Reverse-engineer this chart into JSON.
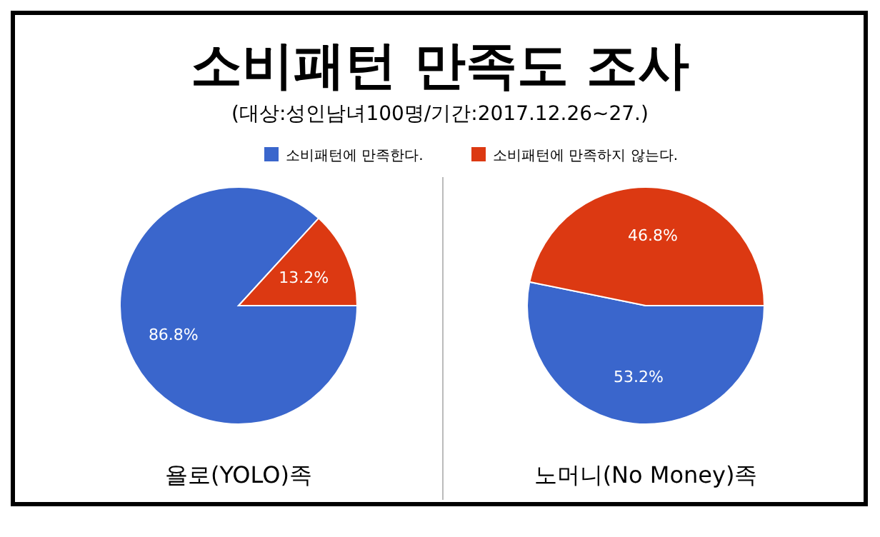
{
  "chart_data": [
    {
      "type": "pie",
      "title": "소비패턴 만족도 조사",
      "subtitle": "(대상:성인남녀100명/기간:2017.12.26~27.)",
      "xlabel": "욜로(YOLO)족",
      "categories": [
        "소비패턴에 만족한다.",
        "소비패턴에 만족하지 않는다."
      ],
      "values": [
        86.8,
        13.2
      ],
      "value_labels": [
        "86.8%",
        "13.2%"
      ],
      "colors": [
        "#3a66cc",
        "#dc3912"
      ],
      "legend": "top"
    },
    {
      "type": "pie",
      "xlabel": "노머니(No Money)족",
      "categories": [
        null,
        null
      ],
      "values": [
        53.2,
        46.8
      ],
      "value_labels": [
        "53.2%",
        "46.8%"
      ],
      "colors": [
        "#3a66cc",
        "#dc3912"
      ]
    }
  ]
}
